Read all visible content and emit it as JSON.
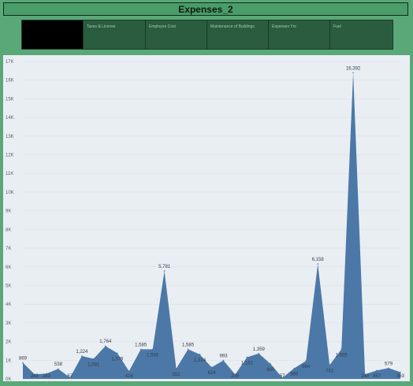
{
  "header": {
    "title": "Expenses_2"
  },
  "tabs": [
    {
      "label": "",
      "active": true
    },
    {
      "label": "Taxes & License",
      "active": false
    },
    {
      "label": "Employee Cost",
      "active": false
    },
    {
      "label": "Maintenance of Buildings",
      "active": false
    },
    {
      "label": "Expenses Yrs",
      "active": false
    },
    {
      "label": "Fuel",
      "active": false
    }
  ],
  "colors": {
    "area": "#4c78a8",
    "page_bg": "#5aa878",
    "plot_bg": "#e9eef3"
  },
  "chart_data": {
    "type": "area",
    "title": "Expenses_2",
    "xlabel": "",
    "ylabel": "",
    "ylim": [
      0,
      17000
    ],
    "yticks": [
      "0K",
      "1K",
      "2K",
      "3K",
      "4K",
      "5K",
      "6K",
      "7K",
      "8K",
      "9K",
      "10K",
      "11K",
      "12K",
      "13K",
      "14K",
      "15K",
      "16K",
      "17K"
    ],
    "grid": true,
    "values": [
      869,
      245,
      283,
      538,
      67,
      1224,
      1081,
      1764,
      1379,
      416,
      1585,
      1585,
      5781,
      552,
      1585,
      1314,
      624,
      993,
      235,
      1162,
      1359,
      800,
      57,
      569,
      964,
      6158,
      742,
      1585,
      16392,
      248,
      457,
      579,
      363
    ],
    "labels": [
      "869",
      "245",
      "283",
      "538",
      "67",
      "1,224",
      "1,081",
      "1,764",
      "1,379",
      "416",
      "1,585",
      "1,585",
      "5,781",
      "552",
      "1,585",
      "1,314",
      "624",
      "993",
      "235",
      "1,162",
      "1,359",
      "800",
      "57",
      "569",
      "964",
      "6,158",
      "742",
      "1,585",
      "16,392",
      "248",
      "457",
      "579",
      "363"
    ]
  }
}
